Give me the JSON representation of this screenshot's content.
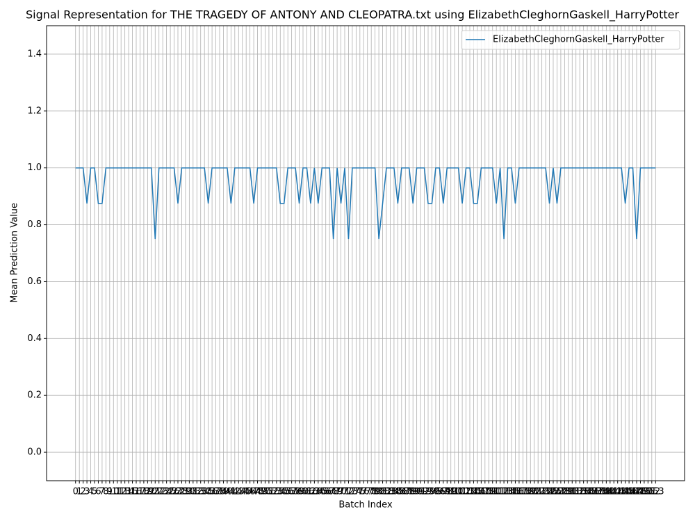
{
  "chart_data": {
    "type": "line",
    "title": "Signal Representation for THE TRAGEDY OF ANTONY AND CLEOPATRA.txt using ElizabethCleghornGaskell_HarryPotter",
    "xlabel": "Batch Index",
    "ylabel": "Mean Prediction Value",
    "x": [
      0,
      1,
      2,
      3,
      4,
      5,
      6,
      7,
      8,
      9,
      10,
      11,
      12,
      13,
      14,
      15,
      16,
      17,
      18,
      19,
      20,
      21,
      22,
      23,
      24,
      25,
      26,
      27,
      28,
      29,
      30,
      31,
      32,
      33,
      34,
      35,
      36,
      37,
      38,
      39,
      40,
      41,
      42,
      43,
      44,
      45,
      46,
      47,
      48,
      49,
      50,
      51,
      52,
      53,
      54,
      55,
      56,
      57,
      58,
      59,
      60,
      61,
      62,
      63,
      64,
      65,
      66,
      67,
      68,
      69,
      70,
      71,
      72,
      73,
      74,
      75,
      76,
      77,
      78,
      79,
      80,
      81,
      82,
      83,
      84,
      85,
      86,
      87,
      88,
      89,
      90,
      91,
      92,
      93,
      94,
      95,
      96,
      97,
      98,
      99,
      100,
      101,
      102,
      103,
      104,
      105,
      106,
      107,
      108,
      109,
      110,
      111,
      112,
      113,
      114,
      115,
      116,
      117,
      118,
      119,
      120,
      121,
      122,
      123,
      124,
      125,
      126,
      127,
      128,
      129,
      130,
      131,
      132,
      133,
      134,
      135,
      136,
      137,
      138,
      139,
      140,
      141,
      142,
      143,
      144,
      145,
      146,
      147,
      148,
      149,
      150,
      151,
      152,
      153
    ],
    "series": [
      {
        "name": "ElizabethCleghornGaskell_HarryPotter",
        "color": "#1f77b4",
        "values": [
          1,
          1,
          1,
          0.875,
          1,
          1,
          0.875,
          0.875,
          1,
          1,
          1,
          1,
          1,
          1,
          1,
          1,
          1,
          1,
          1,
          1,
          1,
          0.75,
          1,
          1,
          1,
          1,
          1,
          0.875,
          1,
          1,
          1,
          1,
          1,
          1,
          1,
          0.875,
          1,
          1,
          1,
          1,
          1,
          0.875,
          1,
          1,
          1,
          1,
          1,
          0.875,
          1,
          1,
          1,
          1,
          1,
          1,
          0.875,
          0.875,
          1,
          1,
          1,
          0.875,
          1,
          1,
          0.875,
          1,
          0.875,
          1,
          1,
          1,
          0.75,
          1,
          0.875,
          1,
          0.75,
          1,
          1,
          1,
          1,
          1,
          1,
          1,
          0.75,
          0.875,
          1,
          1,
          1,
          0.875,
          1,
          1,
          1,
          0.875,
          1,
          1,
          1,
          0.875,
          0.875,
          1,
          1,
          0.875,
          1,
          1,
          1,
          1,
          0.875,
          1,
          1,
          0.875,
          0.875,
          1,
          1,
          1,
          1,
          0.875,
          1,
          0.75,
          1,
          1,
          0.875,
          1,
          1,
          1,
          1,
          1,
          1,
          1,
          1,
          0.875,
          1,
          0.875,
          1,
          1,
          1,
          1,
          1,
          1,
          1,
          1,
          1,
          1,
          1,
          1,
          1,
          1,
          1,
          1,
          1,
          0.875,
          1,
          1,
          0.75,
          1,
          1,
          1,
          1,
          1
        ]
      }
    ],
    "xlim": [
      -7.65,
      160.65
    ],
    "xticks": [
      0,
      1,
      2,
      3,
      4,
      5,
      6,
      7,
      8,
      9,
      10,
      11,
      12,
      13,
      14,
      15,
      16,
      17,
      18,
      19,
      20,
      21,
      22,
      23,
      24,
      25,
      26,
      27,
      28,
      29,
      30,
      31,
      32,
      33,
      34,
      35,
      36,
      37,
      38,
      39,
      40,
      41,
      42,
      43,
      44,
      45,
      46,
      47,
      48,
      49,
      50,
      51,
      52,
      53,
      54,
      55,
      56,
      57,
      58,
      59,
      60,
      61,
      62,
      63,
      64,
      65,
      66,
      67,
      68,
      69,
      70,
      71,
      72,
      73,
      74,
      75,
      76,
      77,
      78,
      79,
      80,
      81,
      82,
      83,
      84,
      85,
      86,
      87,
      88,
      89,
      90,
      91,
      92,
      93,
      94,
      95,
      96,
      97,
      98,
      99,
      100,
      101,
      102,
      103,
      104,
      105,
      106,
      107,
      108,
      109,
      110,
      111,
      112,
      113,
      114,
      115,
      116,
      117,
      118,
      119,
      120,
      121,
      122,
      123,
      124,
      125,
      126,
      127,
      128,
      129,
      130,
      131,
      132,
      133,
      134,
      135,
      136,
      137,
      138,
      139,
      140,
      141,
      142,
      143,
      144,
      145,
      146,
      147,
      148,
      149,
      150,
      151,
      152,
      153
    ],
    "ylim": [
      -0.1,
      1.5
    ],
    "yticks": [
      {
        "value": 0,
        "label": "0.0"
      },
      0.2,
      0.4,
      0.6,
      0.8,
      {
        "value": 1,
        "label": "1.0"
      },
      1.2,
      1.4
    ],
    "grid": true,
    "legend": "upper right"
  }
}
